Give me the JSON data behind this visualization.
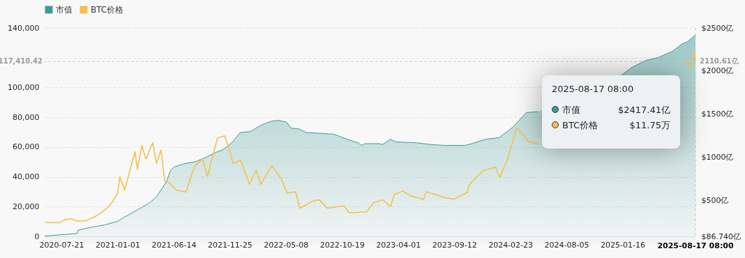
{
  "chart_data": {
    "type": "line",
    "legend": "top",
    "grid": "y",
    "line_style": "solid",
    "xlim": [
      "2020-06-02",
      "2025-08-17"
    ],
    "xticks": [
      "2020-07-21",
      "2021-01-01",
      "2021-06-14",
      "2021-11-25",
      "2022-05-08",
      "2022-10-19",
      "2023-04-01",
      "2023-09-12",
      "2024-02-23",
      "2024-08-05",
      "2025-01-16"
    ],
    "ylim": [
      0,
      140000
    ],
    "yticks": [
      {
        "value": 0,
        "label": "0"
      },
      {
        "value": 20000,
        "label": "20,000"
      },
      {
        "value": 40000,
        "label": "40,000"
      },
      {
        "value": 60000,
        "label": "60,000"
      },
      {
        "value": 80000,
        "label": "80,000"
      },
      {
        "value": 100000,
        "label": "100,000"
      },
      {
        "value": 120000,
        "label": null
      },
      {
        "value": 140000,
        "label": "140,000"
      }
    ],
    "y2lim": [
      86.74,
      2500
    ],
    "y2ticks": [
      {
        "value": 86.74,
        "label": "$86.740亿"
      },
      {
        "value": 500,
        "label": "$500亿"
      },
      {
        "value": 1000,
        "label": "$1000亿"
      },
      {
        "value": 1500,
        "label": "$1500亿"
      },
      {
        "value": 2000,
        "label": "$2000亿"
      },
      {
        "value": 2500,
        "label": "$2500亿"
      }
    ],
    "series": [
      {
        "name": "市值",
        "type": "area",
        "axis": "y2",
        "color": "#3f9a96",
        "x": [
          "2020-06-02",
          "2020-08-03",
          "2020-09-05",
          "2020-09-08",
          "2020-10-14",
          "2020-11-25",
          "2021-01-01",
          "2021-01-17",
          "2021-03-03",
          "2021-04-03",
          "2021-04-24",
          "2021-05-24",
          "2021-06-05",
          "2021-06-15",
          "2021-07-16",
          "2021-08-16",
          "2021-09-15",
          "2021-10-16",
          "2021-11-05",
          "2021-12-01",
          "2021-12-26",
          "2022-01-25",
          "2022-02-14",
          "2022-03-06",
          "2022-03-27",
          "2022-04-16",
          "2022-05-10",
          "2022-05-23",
          "2022-06-16",
          "2022-07-06",
          "2022-08-15",
          "2022-09-25",
          "2022-10-15",
          "2022-11-04",
          "2022-12-05",
          "2022-12-15",
          "2022-12-25",
          "2023-02-04",
          "2023-02-14",
          "2023-03-10",
          "2023-03-26",
          "2023-05-26",
          "2023-07-05",
          "2023-08-14",
          "2023-10-13",
          "2023-11-02",
          "2023-12-12",
          "2024-01-21",
          "2024-03-01",
          "2024-04-10",
          "2024-05-14",
          "2024-06-01",
          "2025-01-12",
          "2025-02-11",
          "2025-03-23",
          "2025-05-02",
          "2025-06-11",
          "2025-07-11",
          "2025-07-25",
          "2025-08-17"
        ],
        "values": [
          90,
          110,
          120,
          160,
          190,
          220,
          260,
          300,
          400,
          470,
          540,
          720,
          850,
          890,
          930,
          950,
          1000,
          1060,
          1090,
          1170,
          1290,
          1300,
          1350,
          1390,
          1420,
          1430,
          1410,
          1340,
          1330,
          1290,
          1280,
          1270,
          1240,
          1210,
          1170,
          1140,
          1160,
          1160,
          1150,
          1210,
          1180,
          1170,
          1150,
          1140,
          1140,
          1160,
          1210,
          1230,
          1350,
          1520,
          1530,
          null,
          1950,
          2040,
          2120,
          2160,
          2230,
          2320,
          2340,
          2417.41
        ]
      },
      {
        "name": "BTC价格",
        "color": "#f5c04a",
        "x": [
          "2020-06-02",
          "2020-06-20",
          "2020-07-15",
          "2020-08-01",
          "2020-08-20",
          "2020-09-05",
          "2020-10-01",
          "2020-10-25",
          "2020-11-15",
          "2020-12-01",
          "2020-12-17",
          "2021-01-01",
          "2021-01-08",
          "2021-01-22",
          "2021-02-08",
          "2021-02-21",
          "2021-02-28",
          "2021-03-13",
          "2021-03-25",
          "2021-04-14",
          "2021-04-25",
          "2021-05-08",
          "2021-05-19",
          "2021-06-01",
          "2021-06-22",
          "2021-07-20",
          "2021-08-14",
          "2021-09-06",
          "2021-09-21",
          "2021-10-20",
          "2021-11-10",
          "2021-11-25",
          "2021-12-04",
          "2021-12-27",
          "2022-01-22",
          "2022-02-10",
          "2022-02-24",
          "2022-03-28",
          "2022-04-25",
          "2022-05-12",
          "2022-06-05",
          "2022-06-18",
          "2022-07-29",
          "2022-08-14",
          "2022-09-06",
          "2022-10-25",
          "2022-11-09",
          "2022-12-30",
          "2023-01-20",
          "2023-02-16",
          "2023-03-10",
          "2023-03-20",
          "2023-04-14",
          "2023-05-10",
          "2023-06-15",
          "2023-06-22",
          "2023-08-17",
          "2023-09-11",
          "2023-10-20",
          "2023-10-25",
          "2023-12-05",
          "2024-01-11",
          "2024-01-23",
          "2024-02-15",
          "2024-03-13",
          "2024-04-05",
          "2024-04-14",
          "2024-05-14",
          "2024-06-01",
          "2025-07-12",
          "2025-07-25",
          "2025-08-01",
          "2025-08-13",
          "2025-08-17"
        ],
        "values": [
          9500,
          9300,
          9200,
          11300,
          11800,
          10200,
          10600,
          13000,
          16000,
          19000,
          23000,
          29000,
          40000,
          31000,
          46000,
          57000,
          45000,
          61000,
          52000,
          63000,
          49000,
          58000,
          37000,
          36000,
          31000,
          29800,
          47000,
          52000,
          40500,
          66000,
          67500,
          58000,
          49000,
          51000,
          35000,
          44500,
          35000,
          47500,
          38500,
          29000,
          30000,
          19000,
          24000,
          24500,
          19000,
          20500,
          15800,
          16500,
          22800,
          24500,
          20000,
          28000,
          30500,
          27000,
          25000,
          30000,
          26000,
          25000,
          29500,
          34500,
          44000,
          46500,
          39500,
          52000,
          73000,
          67000,
          64000,
          62000,
          null,
          117000,
          116000,
          113000,
          123500,
          117410.42
        ]
      }
    ],
    "ref_lines": [
      {
        "axis": "y",
        "value": 117410.42,
        "label": "117,410.42",
        "line_style": "dashed",
        "color": "#c8c8c8"
      },
      {
        "axis": "x",
        "value": "2025-08-17",
        "label": "2025-08-17 08:00",
        "line_style": "dashed",
        "color": "#c8c8c8"
      }
    ],
    "annotations": [
      "2025-08-17 08:00",
      "市值 $2417.41亿",
      "BTC价格 $11.75万",
      {
        "text": "2110.61亿",
        "x": "2025-08-17",
        "y": 117410.42
      }
    ]
  }
}
